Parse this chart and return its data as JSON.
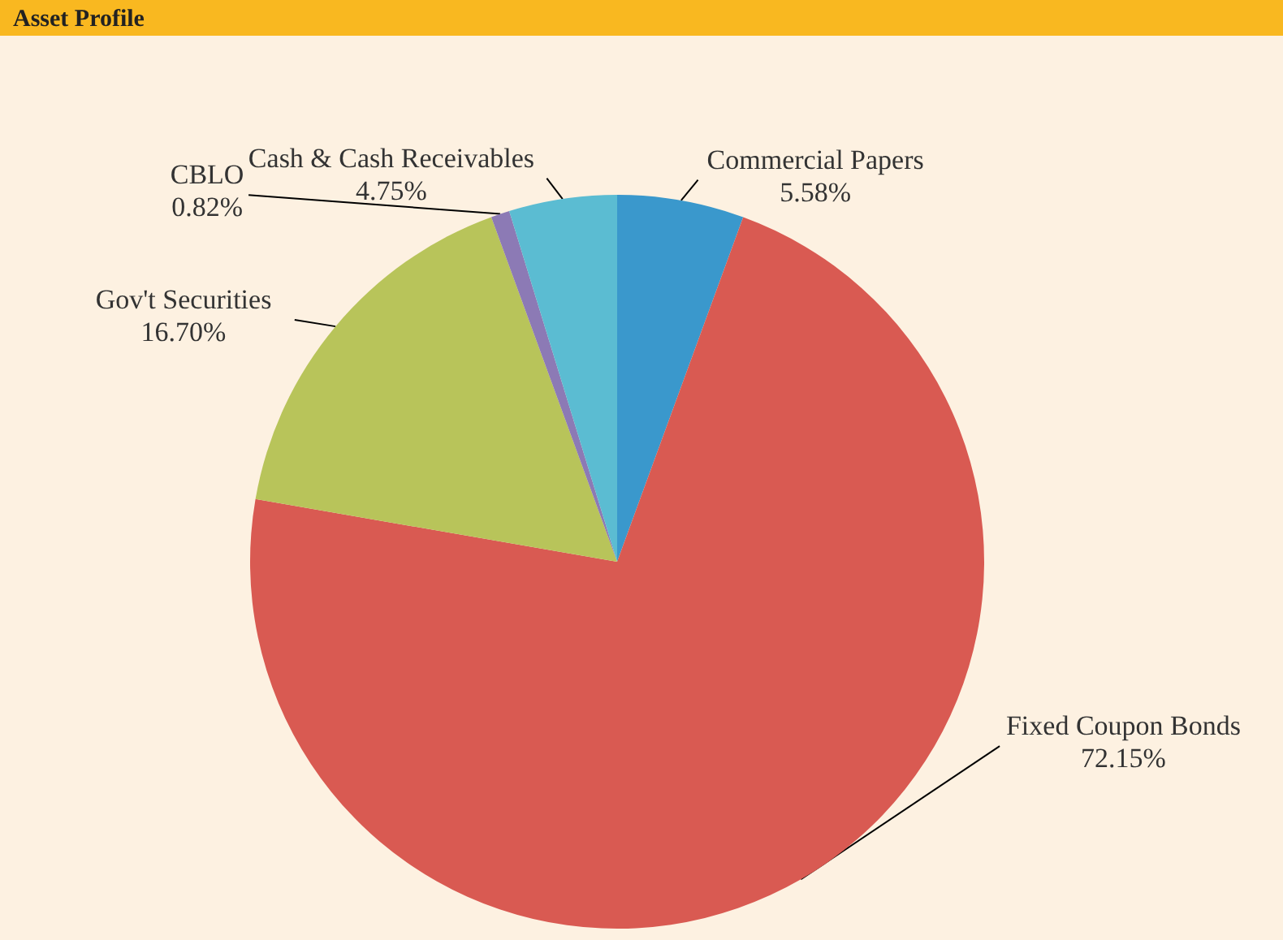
{
  "chart_data": {
    "type": "pie",
    "title": "Asset Profile",
    "categories": [
      "Commercial Papers",
      "Fixed Coupon Bonds",
      "Gov't Securities",
      "CBLO",
      "Cash & Cash Receivables"
    ],
    "values": [
      5.58,
      72.15,
      16.7,
      0.82,
      4.75
    ],
    "colors": [
      "#3a98cc",
      "#d95a52",
      "#b8c45a",
      "#8c7ab5",
      "#5bbcd2"
    ],
    "value_labels": [
      "5.58%",
      "72.15%",
      "16.70%",
      "0.82%",
      "4.75%"
    ]
  }
}
